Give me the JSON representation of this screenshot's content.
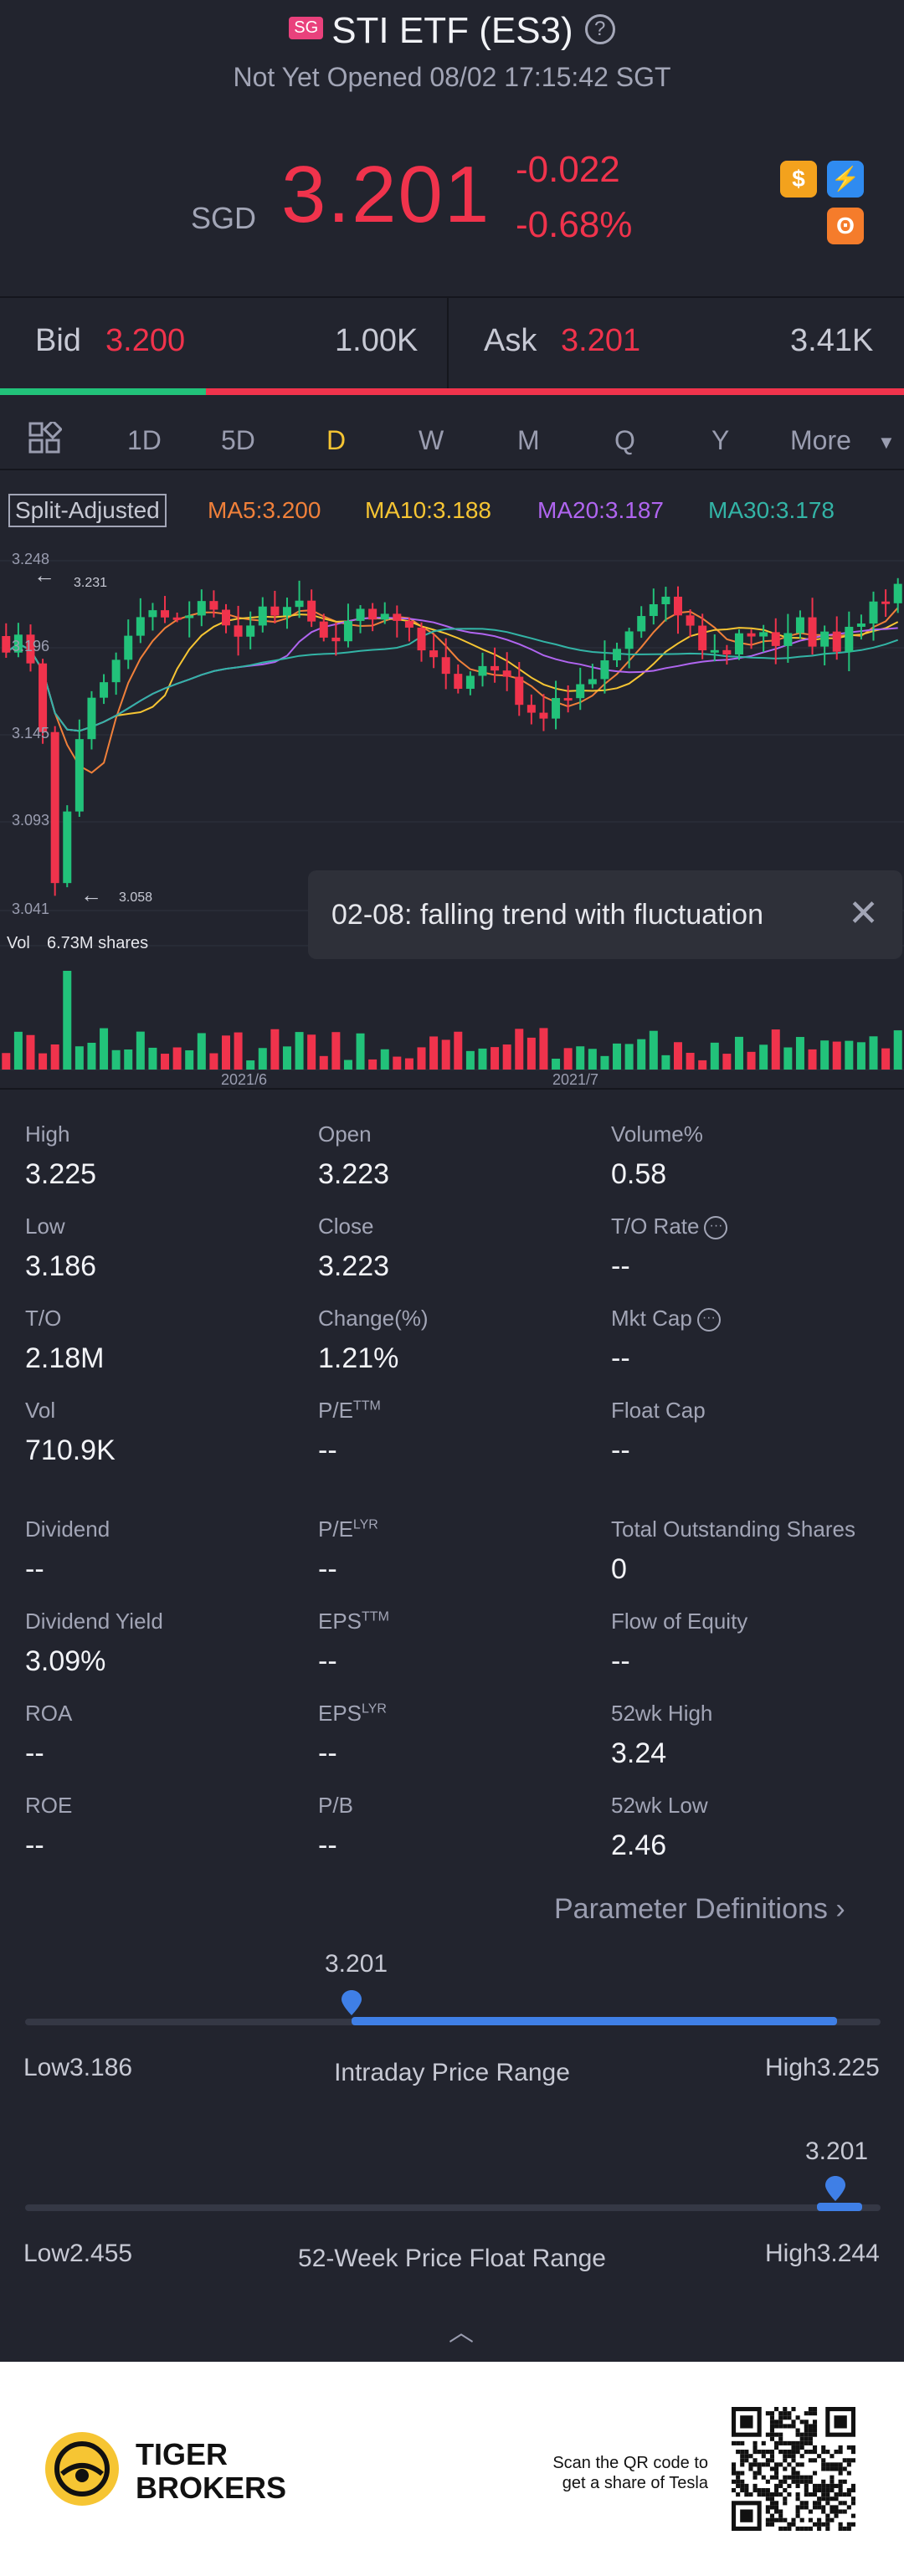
{
  "header": {
    "badge": "SG",
    "title": "STI ETF (ES3)",
    "help_icon": "?",
    "status": "Not Yet Opened 08/02 17:15:42 SGT",
    "currency": "SGD",
    "price": "3.201",
    "change": "-0.022",
    "change_pct": "-0.68%",
    "icons": [
      "dollar-icon",
      "lightning-icon",
      "bear-icon"
    ]
  },
  "bidask": {
    "bid_label": "Bid",
    "bid_price": "3.200",
    "bid_qty": "1.00K",
    "ask_label": "Ask",
    "ask_price": "3.201",
    "ask_qty": "3.41K",
    "bid_fraction": 0.228
  },
  "tabs": [
    "1D",
    "5D",
    "D",
    "W",
    "M",
    "Q",
    "Y",
    "More"
  ],
  "active_tab": "D",
  "ma": {
    "split": "Split-Adjusted",
    "ma5": "MA5:3.200",
    "ma10": "MA10:3.188",
    "ma20": "MA20:3.187",
    "ma30": "MA30:3.178",
    "colors": {
      "ma5": "#f0803a",
      "ma10": "#f6c533",
      "ma20": "#b065f0",
      "ma30": "#33b4a6"
    }
  },
  "chart": {
    "y_ticks": [
      "3.248",
      "3.196",
      "3.145",
      "3.093",
      "3.041"
    ],
    "high_marker": "3.231",
    "low_marker": "3.058",
    "vol_label": "Vol",
    "vol_value": "6.73M shares",
    "x_labels": [
      "2021/6",
      "2021/7"
    ]
  },
  "tooltip": {
    "text": "02-08: falling trend with fluctuation",
    "close": "✕"
  },
  "stats": {
    "high_label": "High",
    "high": "3.225",
    "open_label": "Open",
    "open": "3.223",
    "volpct_label": "Volume%",
    "volpct": "0.58",
    "low_label": "Low",
    "low": "3.186",
    "close_label": "Close",
    "close": "3.223",
    "torate_label": "T/O Rate",
    "torate": "--",
    "to_label": "T/O",
    "to": "2.18M",
    "changepct_label": "Change(%)",
    "changepct": "1.21%",
    "mktcap_label": "Mkt Cap",
    "mktcap": "--",
    "vol_label": "Vol",
    "vol": "710.9K",
    "pe_ttm_label": "P/E",
    "pe_ttm_sup": "TTM",
    "pe_ttm": "--",
    "floatcap_label": "Float Cap",
    "floatcap": "--",
    "dividend_label": "Dividend",
    "dividend": "--",
    "pe_lyr_label": "P/E",
    "pe_lyr_sup": "LYR",
    "pe_lyr": "--",
    "tos_label": "Total Outstanding Shares",
    "tos": "0",
    "divyield_label": "Dividend Yield",
    "divyield": "3.09%",
    "eps_ttm_label": "EPS",
    "eps_ttm_sup": "TTM",
    "eps_ttm": "--",
    "flow_label": "Flow of Equity",
    "flow": "--",
    "roa_label": "ROA",
    "roa": "--",
    "eps_lyr_label": "EPS",
    "eps_lyr_sup": "LYR",
    "eps_lyr": "--",
    "wk52h_label": "52wk High",
    "wk52h": "3.24",
    "roe_label": "ROE",
    "roe": "--",
    "pb_label": "P/B",
    "pb": "--",
    "wk52l_label": "52wk Low",
    "wk52l": "2.46"
  },
  "param_def": "Parameter Definitions",
  "intraday": {
    "current": "3.201",
    "low": "Low3.186",
    "title": "Intraday Price Range",
    "high": "High3.225",
    "marker_fraction": 0.38
  },
  "week52": {
    "current": "3.201",
    "low": "Low2.455",
    "title": "52-Week Price Float Range",
    "high": "High3.244",
    "marker_fraction": 0.945
  },
  "footer": {
    "brand_line1": "TIGER",
    "brand_line2": "BROKERS",
    "qr_text1": "Scan the QR code to",
    "qr_text2": "get a share of Tesla"
  }
}
